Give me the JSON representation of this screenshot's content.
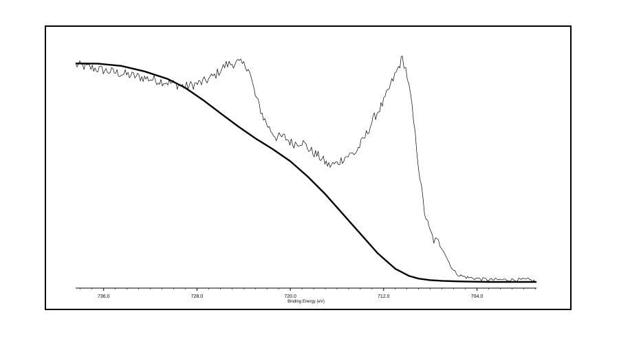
{
  "chart_data": {
    "type": "line",
    "xlabel": "Binding Energy (eV)",
    "ylabel": "",
    "title": "",
    "x_reversed": true,
    "xlim": [
      738.4,
      698.9
    ],
    "ylim": [
      0,
      1
    ],
    "grid": false,
    "x_ticks": [
      736.0,
      728.0,
      720.0,
      712.0,
      704.0
    ],
    "tick_labels": [
      "736.0",
      "728.0",
      "720.0",
      "712.0",
      "704.0"
    ],
    "series": [
      {
        "style": "thin-noisy",
        "x": [
          738.4,
          736.5,
          734.5,
          732.5,
          730.5,
          729.0,
          727.5,
          726.5,
          725.5,
          724.5,
          723.6,
          723.0,
          722.3,
          721.8,
          721.2,
          720.5,
          719.8,
          719.0,
          718.3,
          717.5,
          716.7,
          716.0,
          715.3,
          714.4,
          713.6,
          712.8,
          712.0,
          711.3,
          710.7,
          710.4,
          710.1,
          709.7,
          709.3,
          708.9,
          708.5,
          708.1,
          707.7,
          707.3,
          706.9,
          706.5,
          706.0,
          705.5,
          704.8,
          703.0,
          701.0,
          699.5,
          698.9
        ],
        "y": [
          0.99,
          0.97,
          0.95,
          0.93,
          0.91,
          0.89,
          0.91,
          0.94,
          0.99,
          1.0,
          0.98,
          0.85,
          0.75,
          0.7,
          0.66,
          0.66,
          0.63,
          0.64,
          0.6,
          0.57,
          0.53,
          0.54,
          0.57,
          0.59,
          0.66,
          0.75,
          0.82,
          0.91,
          0.98,
          1.02,
          0.97,
          0.85,
          0.67,
          0.48,
          0.32,
          0.24,
          0.19,
          0.18,
          0.16,
          0.1,
          0.05,
          0.03,
          0.02,
          0.01,
          0.01,
          0.01,
          0.0
        ]
      },
      {
        "style": "thick-background",
        "x": [
          738.4,
          736.5,
          734.5,
          732.5,
          730.5,
          729.0,
          727.5,
          726.0,
          724.5,
          723.0,
          721.5,
          720.0,
          718.5,
          717.0,
          715.5,
          714.0,
          712.5,
          711.0,
          709.8,
          709.0,
          708.0,
          707.0,
          706.0,
          705.0,
          703.0,
          701.0,
          698.9
        ],
        "y": [
          0.996,
          0.995,
          0.985,
          0.96,
          0.925,
          0.885,
          0.83,
          0.77,
          0.71,
          0.655,
          0.605,
          0.55,
          0.48,
          0.4,
          0.31,
          0.22,
          0.13,
          0.06,
          0.027,
          0.015,
          0.008,
          0.005,
          0.003,
          0.002,
          0.0,
          0.0,
          0.0
        ]
      }
    ]
  }
}
